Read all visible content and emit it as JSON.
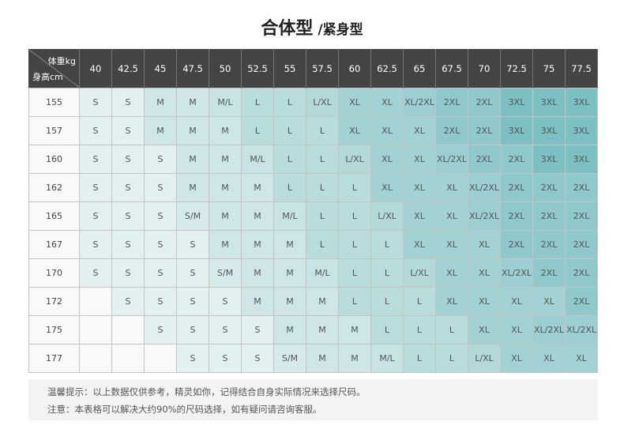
{
  "title": {
    "main": "合体型",
    "sub": "/紧身型"
  },
  "table": {
    "weight_label": "体重kg",
    "height_label": "身高cm",
    "weights": [
      "40",
      "42.5",
      "45",
      "47.5",
      "50",
      "52.5",
      "55",
      "57.5",
      "60",
      "62.5",
      "65",
      "67.5",
      "70",
      "72.5",
      "75",
      "77.5"
    ],
    "rows": [
      {
        "height": "155",
        "sizes": [
          "S",
          "S",
          "M",
          "M",
          "M/L",
          "L",
          "L",
          "L/XL",
          "XL",
          "XL",
          "XL/2XL",
          "2XL",
          "2XL",
          "3XL",
          "3XL",
          "3XL"
        ]
      },
      {
        "height": "157",
        "sizes": [
          "S",
          "S",
          "M",
          "M",
          "M",
          "L",
          "L",
          "L",
          "XL",
          "XL",
          "XL",
          "2XL",
          "2XL",
          "3XL",
          "3XL",
          "3XL"
        ]
      },
      {
        "height": "160",
        "sizes": [
          "S",
          "S",
          "S",
          "M",
          "M",
          "M/L",
          "L",
          "L",
          "L/XL",
          "XL",
          "XL",
          "XL/2XL",
          "2XL",
          "2XL",
          "3XL",
          "3XL"
        ]
      },
      {
        "height": "162",
        "sizes": [
          "S",
          "S",
          "S",
          "M",
          "M",
          "M",
          "L",
          "L",
          "L",
          "XL",
          "XL",
          "XL",
          "XL/2XL",
          "2XL",
          "2XL",
          "2XL"
        ]
      },
      {
        "height": "165",
        "sizes": [
          "S",
          "S",
          "S",
          "S/M",
          "M",
          "M",
          "M/L",
          "L",
          "L",
          "L/XL",
          "XL",
          "XL",
          "XL/2XL",
          "2XL",
          "2XL",
          "2XL"
        ]
      },
      {
        "height": "167",
        "sizes": [
          "S",
          "S",
          "S",
          "S",
          "M",
          "M",
          "M",
          "L",
          "L",
          "L",
          "XL",
          "XL",
          "XL",
          "2XL",
          "2XL",
          "2XL"
        ]
      },
      {
        "height": "170",
        "sizes": [
          "S",
          "S",
          "S",
          "S",
          "S/M",
          "M",
          "M",
          "M/L",
          "L",
          "L",
          "L/XL",
          "XL",
          "XL",
          "XL/2XL",
          "2XL",
          "2XL"
        ]
      },
      {
        "height": "172",
        "sizes": [
          "",
          "S",
          "S",
          "S",
          "S",
          "M",
          "M",
          "M",
          "L",
          "L",
          "L",
          "XL",
          "XL",
          "XL",
          "XL",
          "2XL"
        ]
      },
      {
        "height": "175",
        "sizes": [
          "",
          "",
          "S",
          "S",
          "S",
          "S",
          "M",
          "M",
          "M",
          "L",
          "L",
          "L",
          "XL",
          "XL",
          "XL/2XL",
          "XL/2XL"
        ]
      },
      {
        "height": "177",
        "sizes": [
          "",
          "",
          "",
          "S",
          "S",
          "S",
          "S/M",
          "M",
          "M",
          "M/L",
          "L",
          "L",
          "L/XL",
          "XL",
          "XL",
          "XL"
        ]
      }
    ],
    "size_colors": {
      "": "#f9f9f9",
      "S": "#e3f0f0",
      "S/M": "#d6eaeb",
      "M": "#cfe6e7",
      "M/L": "#c8e3e4",
      "L": "#b9dcdd",
      "L/XL": "#b3d9da",
      "XL": "#a3d2d5",
      "XL/2XL": "#9bcfd2",
      "2XL": "#8fc9cc",
      "3XL": "#7cc0c4"
    }
  },
  "notes": [
    "温馨提示：以上数据仅供参考，精灵如你，记得结合自身实际情况来选择尺码。",
    "注意：本表格可以解决大约90%的尺码选择，如有疑问请咨询客服。"
  ]
}
